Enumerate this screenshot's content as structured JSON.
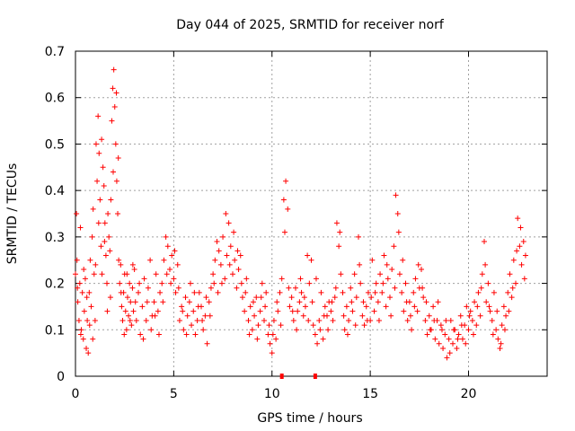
{
  "chart_data": {
    "type": "scatter",
    "title": "Day 044 of 2025, SRMTID for receiver norf",
    "xlabel": "GPS time / hours",
    "ylabel": "SRMTID / TECUs",
    "xlim": [
      0,
      24
    ],
    "ylim": [
      0,
      0.7
    ],
    "x_ticks": [
      0,
      5,
      10,
      15,
      20
    ],
    "x_tick_labels": [
      "0",
      "5",
      "10",
      "15",
      "20"
    ],
    "y_ticks": [
      0,
      0.1,
      0.2,
      0.3,
      0.4,
      0.5,
      0.6,
      0.7
    ],
    "y_tick_labels": [
      "0",
      "0.1",
      "0.2",
      "0.3",
      "0.4",
      "0.5",
      "0.6",
      "0.7"
    ],
    "grid": true,
    "color": "#ff0000",
    "marker": "plus",
    "points": [
      [
        0.0,
        0.22
      ],
      [
        0.05,
        0.35
      ],
      [
        0.08,
        0.25
      ],
      [
        0.12,
        0.16
      ],
      [
        0.18,
        0.12
      ],
      [
        0.22,
        0.2
      ],
      [
        0.25,
        0.32
      ],
      [
        0.3,
        0.1
      ],
      [
        0.35,
        0.18
      ],
      [
        0.4,
        0.08
      ],
      [
        0.45,
        0.14
      ],
      [
        0.5,
        0.21
      ],
      [
        0.55,
        0.06
      ],
      [
        0.6,
        0.12
      ],
      [
        0.65,
        0.05
      ],
      [
        0.7,
        0.18
      ],
      [
        0.75,
        0.25
      ],
      [
        0.8,
        0.15
      ],
      [
        0.85,
        0.3
      ],
      [
        0.9,
        0.36
      ],
      [
        0.95,
        0.22
      ],
      [
        1.0,
        0.12
      ],
      [
        1.05,
        0.5
      ],
      [
        1.1,
        0.42
      ],
      [
        1.15,
        0.56
      ],
      [
        1.2,
        0.48
      ],
      [
        1.25,
        0.38
      ],
      [
        1.3,
        0.28
      ],
      [
        1.35,
        0.22
      ],
      [
        1.4,
        0.45
      ],
      [
        1.45,
        0.41
      ],
      [
        1.5,
        0.33
      ],
      [
        1.55,
        0.26
      ],
      [
        1.6,
        0.2
      ],
      [
        1.65,
        0.35
      ],
      [
        1.7,
        0.3
      ],
      [
        1.75,
        0.27
      ],
      [
        1.8,
        0.38
      ],
      [
        1.85,
        0.55
      ],
      [
        1.9,
        0.62
      ],
      [
        1.95,
        0.66
      ],
      [
        2.0,
        0.58
      ],
      [
        2.05,
        0.5
      ],
      [
        2.1,
        0.42
      ],
      [
        2.15,
        0.35
      ],
      [
        2.2,
        0.25
      ],
      [
        2.25,
        0.2
      ],
      [
        2.3,
        0.24
      ],
      [
        2.35,
        0.15
      ],
      [
        2.4,
        0.12
      ],
      [
        2.45,
        0.18
      ],
      [
        2.5,
        0.22
      ],
      [
        2.55,
        0.14
      ],
      [
        2.6,
        0.1
      ],
      [
        2.65,
        0.17
      ],
      [
        2.7,
        0.13
      ],
      [
        2.75,
        0.2
      ],
      [
        2.8,
        0.16
      ],
      [
        2.85,
        0.11
      ],
      [
        2.9,
        0.19
      ],
      [
        2.95,
        0.14
      ],
      [
        3.0,
        0.23
      ],
      [
        3.1,
        0.12
      ],
      [
        3.2,
        0.18
      ],
      [
        3.3,
        0.09
      ],
      [
        3.4,
        0.15
      ],
      [
        3.5,
        0.21
      ],
      [
        3.6,
        0.12
      ],
      [
        3.7,
        0.19
      ],
      [
        3.8,
        0.25
      ],
      [
        3.9,
        0.13
      ],
      [
        4.0,
        0.16
      ],
      [
        4.1,
        0.22
      ],
      [
        4.2,
        0.14
      ],
      [
        4.3,
        0.18
      ],
      [
        4.4,
        0.2
      ],
      [
        4.5,
        0.25
      ],
      [
        4.6,
        0.3
      ],
      [
        4.7,
        0.28
      ],
      [
        4.8,
        0.23
      ],
      [
        4.9,
        0.26
      ],
      [
        5.0,
        0.21
      ],
      [
        5.1,
        0.18
      ],
      [
        5.2,
        0.24
      ],
      [
        5.3,
        0.12
      ],
      [
        5.4,
        0.15
      ],
      [
        5.5,
        0.1
      ],
      [
        5.6,
        0.17
      ],
      [
        5.7,
        0.13
      ],
      [
        5.8,
        0.16
      ],
      [
        5.9,
        0.11
      ],
      [
        6.0,
        0.14
      ],
      [
        6.1,
        0.09
      ],
      [
        6.2,
        0.12
      ],
      [
        6.3,
        0.18
      ],
      [
        6.4,
        0.15
      ],
      [
        6.5,
        0.1
      ],
      [
        6.6,
        0.13
      ],
      [
        6.7,
        0.07
      ],
      [
        6.8,
        0.16
      ],
      [
        6.9,
        0.19
      ],
      [
        7.0,
        0.22
      ],
      [
        7.1,
        0.25
      ],
      [
        7.2,
        0.29
      ],
      [
        7.3,
        0.27
      ],
      [
        7.4,
        0.24
      ],
      [
        7.5,
        0.3
      ],
      [
        7.6,
        0.21
      ],
      [
        7.7,
        0.26
      ],
      [
        7.8,
        0.33
      ],
      [
        7.9,
        0.28
      ],
      [
        8.0,
        0.22
      ],
      [
        8.1,
        0.25
      ],
      [
        8.2,
        0.19
      ],
      [
        8.3,
        0.23
      ],
      [
        8.4,
        0.26
      ],
      [
        8.5,
        0.17
      ],
      [
        8.6,
        0.14
      ],
      [
        8.7,
        0.21
      ],
      [
        8.8,
        0.12
      ],
      [
        8.9,
        0.15
      ],
      [
        9.0,
        0.1
      ],
      [
        9.1,
        0.13
      ],
      [
        9.2,
        0.17
      ],
      [
        9.3,
        0.11
      ],
      [
        9.4,
        0.14
      ],
      [
        9.5,
        0.2
      ],
      [
        9.6,
        0.12
      ],
      [
        9.7,
        0.18
      ],
      [
        9.8,
        0.09
      ],
      [
        9.9,
        0.07
      ],
      [
        10.0,
        0.05
      ],
      [
        10.1,
        0.12
      ],
      [
        10.2,
        0.08
      ],
      [
        10.3,
        0.14
      ],
      [
        10.4,
        0.18
      ],
      [
        10.5,
        0.21
      ],
      [
        10.6,
        0.38
      ],
      [
        10.7,
        0.42
      ],
      [
        10.8,
        0.36
      ],
      [
        10.9,
        0.15
      ],
      [
        11.0,
        0.17
      ],
      [
        11.1,
        0.12
      ],
      [
        11.2,
        0.19
      ],
      [
        11.3,
        0.14
      ],
      [
        11.4,
        0.16
      ],
      [
        11.5,
        0.18
      ],
      [
        11.6,
        0.13
      ],
      [
        11.7,
        0.15
      ],
      [
        11.8,
        0.26
      ],
      [
        11.9,
        0.2
      ],
      [
        12.0,
        0.25
      ],
      [
        12.1,
        0.11
      ],
      [
        12.2,
        0.09
      ],
      [
        12.3,
        0.07
      ],
      [
        12.4,
        0.12
      ],
      [
        12.5,
        0.18
      ],
      [
        12.6,
        0.08
      ],
      [
        12.7,
        0.15
      ],
      [
        12.8,
        0.13
      ],
      [
        12.9,
        0.16
      ],
      [
        13.0,
        0.14
      ],
      [
        13.1,
        0.12
      ],
      [
        13.2,
        0.17
      ],
      [
        13.3,
        0.33
      ],
      [
        13.4,
        0.28
      ],
      [
        13.5,
        0.22
      ],
      [
        13.6,
        0.18
      ],
      [
        13.7,
        0.1
      ],
      [
        13.8,
        0.15
      ],
      [
        13.9,
        0.12
      ],
      [
        14.0,
        0.19
      ],
      [
        14.1,
        0.14
      ],
      [
        14.2,
        0.22
      ],
      [
        14.3,
        0.17
      ],
      [
        14.4,
        0.3
      ],
      [
        14.5,
        0.2
      ],
      [
        14.6,
        0.13
      ],
      [
        14.7,
        0.11
      ],
      [
        14.8,
        0.15
      ],
      [
        14.9,
        0.18
      ],
      [
        15.0,
        0.12
      ],
      [
        15.1,
        0.25
      ],
      [
        15.2,
        0.14
      ],
      [
        15.3,
        0.2
      ],
      [
        15.4,
        0.16
      ],
      [
        15.5,
        0.22
      ],
      [
        15.6,
        0.18
      ],
      [
        15.7,
        0.26
      ],
      [
        15.8,
        0.15
      ],
      [
        15.9,
        0.21
      ],
      [
        16.0,
        0.17
      ],
      [
        16.1,
        0.23
      ],
      [
        16.2,
        0.28
      ],
      [
        16.3,
        0.39
      ],
      [
        16.4,
        0.35
      ],
      [
        16.5,
        0.22
      ],
      [
        16.6,
        0.18
      ],
      [
        16.7,
        0.14
      ],
      [
        16.8,
        0.2
      ],
      [
        16.9,
        0.12
      ],
      [
        17.0,
        0.16
      ],
      [
        17.1,
        0.1
      ],
      [
        17.2,
        0.18
      ],
      [
        17.3,
        0.21
      ],
      [
        17.4,
        0.14
      ],
      [
        17.5,
        0.19
      ],
      [
        17.6,
        0.23
      ],
      [
        17.7,
        0.17
      ],
      [
        17.8,
        0.12
      ],
      [
        17.9,
        0.09
      ],
      [
        18.0,
        0.13
      ],
      [
        18.1,
        0.1
      ],
      [
        18.2,
        0.15
      ],
      [
        18.3,
        0.08
      ],
      [
        18.4,
        0.12
      ],
      [
        18.5,
        0.07
      ],
      [
        18.6,
        0.11
      ],
      [
        18.7,
        0.06
      ],
      [
        18.8,
        0.09
      ],
      [
        18.9,
        0.04
      ],
      [
        19.0,
        0.08
      ],
      [
        19.1,
        0.12
      ],
      [
        19.2,
        0.07
      ],
      [
        19.3,
        0.1
      ],
      [
        19.4,
        0.06
      ],
      [
        19.5,
        0.09
      ],
      [
        19.6,
        0.13
      ],
      [
        19.7,
        0.08
      ],
      [
        19.8,
        0.11
      ],
      [
        19.9,
        0.15
      ],
      [
        20.0,
        0.1
      ],
      [
        20.1,
        0.14
      ],
      [
        20.2,
        0.12
      ],
      [
        20.3,
        0.16
      ],
      [
        20.4,
        0.11
      ],
      [
        20.5,
        0.18
      ],
      [
        20.6,
        0.13
      ],
      [
        20.7,
        0.22
      ],
      [
        20.8,
        0.29
      ],
      [
        20.9,
        0.16
      ],
      [
        21.0,
        0.2
      ],
      [
        21.1,
        0.14
      ],
      [
        21.2,
        0.12
      ],
      [
        21.3,
        0.18
      ],
      [
        21.4,
        0.1
      ],
      [
        21.5,
        0.08
      ],
      [
        21.6,
        0.06
      ],
      [
        21.7,
        0.11
      ],
      [
        21.8,
        0.15
      ],
      [
        21.9,
        0.13
      ],
      [
        22.0,
        0.18
      ],
      [
        22.1,
        0.22
      ],
      [
        22.2,
        0.17
      ],
      [
        22.3,
        0.25
      ],
      [
        22.4,
        0.2
      ],
      [
        22.5,
        0.34
      ],
      [
        22.6,
        0.28
      ],
      [
        22.7,
        0.24
      ],
      [
        22.8,
        0.29
      ],
      [
        22.9,
        0.26
      ],
      [
        0.1,
        0.19
      ],
      [
        0.27,
        0.09
      ],
      [
        0.42,
        0.23
      ],
      [
        0.58,
        0.17
      ],
      [
        0.72,
        0.11
      ],
      [
        0.88,
        0.08
      ],
      [
        1.02,
        0.24
      ],
      [
        1.18,
        0.33
      ],
      [
        1.33,
        0.51
      ],
      [
        1.48,
        0.29
      ],
      [
        1.62,
        0.14
      ],
      [
        1.78,
        0.17
      ],
      [
        1.92,
        0.44
      ],
      [
        2.08,
        0.61
      ],
      [
        2.18,
        0.47
      ],
      [
        2.32,
        0.18
      ],
      [
        2.48,
        0.09
      ],
      [
        2.62,
        0.22
      ],
      [
        2.78,
        0.12
      ],
      [
        2.92,
        0.24
      ],
      [
        3.05,
        0.16
      ],
      [
        3.25,
        0.2
      ],
      [
        3.45,
        0.08
      ],
      [
        3.65,
        0.16
      ],
      [
        3.85,
        0.1
      ],
      [
        4.05,
        0.13
      ],
      [
        4.25,
        0.09
      ],
      [
        4.45,
        0.16
      ],
      [
        4.65,
        0.22
      ],
      [
        4.85,
        0.2
      ],
      [
        5.05,
        0.27
      ],
      [
        5.25,
        0.19
      ],
      [
        5.45,
        0.14
      ],
      [
        5.65,
        0.09
      ],
      [
        5.85,
        0.2
      ],
      [
        6.05,
        0.18
      ],
      [
        6.25,
        0.15
      ],
      [
        6.45,
        0.12
      ],
      [
        6.65,
        0.17
      ],
      [
        6.85,
        0.13
      ],
      [
        7.05,
        0.2
      ],
      [
        7.25,
        0.18
      ],
      [
        7.45,
        0.2
      ],
      [
        7.65,
        0.35
      ],
      [
        7.85,
        0.24
      ],
      [
        8.05,
        0.31
      ],
      [
        8.25,
        0.27
      ],
      [
        8.45,
        0.2
      ],
      [
        8.65,
        0.18
      ],
      [
        8.85,
        0.09
      ],
      [
        9.05,
        0.16
      ],
      [
        9.25,
        0.08
      ],
      [
        9.45,
        0.17
      ],
      [
        9.65,
        0.15
      ],
      [
        9.85,
        0.11
      ],
      [
        10.05,
        0.09
      ],
      [
        10.25,
        0.16
      ],
      [
        10.45,
        0.11
      ],
      [
        10.65,
        0.31
      ],
      [
        10.85,
        0.19
      ],
      [
        11.05,
        0.14
      ],
      [
        11.25,
        0.1
      ],
      [
        11.45,
        0.21
      ],
      [
        11.65,
        0.17
      ],
      [
        11.85,
        0.12
      ],
      [
        12.05,
        0.16
      ],
      [
        12.25,
        0.21
      ],
      [
        12.45,
        0.1
      ],
      [
        12.65,
        0.13
      ],
      [
        12.85,
        0.1
      ],
      [
        13.05,
        0.16
      ],
      [
        13.25,
        0.19
      ],
      [
        13.45,
        0.31
      ],
      [
        13.65,
        0.13
      ],
      [
        13.85,
        0.09
      ],
      [
        14.05,
        0.16
      ],
      [
        14.25,
        0.11
      ],
      [
        14.45,
        0.24
      ],
      [
        14.65,
        0.16
      ],
      [
        14.85,
        0.12
      ],
      [
        15.05,
        0.17
      ],
      [
        15.25,
        0.18
      ],
      [
        15.45,
        0.12
      ],
      [
        15.65,
        0.2
      ],
      [
        15.85,
        0.24
      ],
      [
        16.05,
        0.13
      ],
      [
        16.25,
        0.19
      ],
      [
        16.45,
        0.31
      ],
      [
        16.65,
        0.25
      ],
      [
        16.85,
        0.16
      ],
      [
        17.05,
        0.13
      ],
      [
        17.25,
        0.15
      ],
      [
        17.45,
        0.24
      ],
      [
        17.65,
        0.19
      ],
      [
        17.85,
        0.16
      ],
      [
        18.05,
        0.1
      ],
      [
        18.25,
        0.12
      ],
      [
        18.45,
        0.16
      ],
      [
        18.65,
        0.1
      ],
      [
        18.85,
        0.12
      ],
      [
        19.05,
        0.05
      ],
      [
        19.25,
        0.1
      ],
      [
        19.45,
        0.08
      ],
      [
        19.65,
        0.11
      ],
      [
        19.85,
        0.07
      ],
      [
        20.05,
        0.13
      ],
      [
        20.25,
        0.09
      ],
      [
        20.45,
        0.15
      ],
      [
        20.65,
        0.19
      ],
      [
        20.85,
        0.24
      ],
      [
        21.05,
        0.15
      ],
      [
        21.25,
        0.09
      ],
      [
        21.45,
        0.14
      ],
      [
        21.65,
        0.07
      ],
      [
        21.85,
        0.1
      ],
      [
        22.05,
        0.14
      ],
      [
        22.25,
        0.19
      ],
      [
        22.45,
        0.27
      ],
      [
        22.65,
        0.32
      ],
      [
        22.85,
        0.21
      ]
    ],
    "markers": [
      [
        10.5,
        0
      ],
      [
        12.2,
        0
      ]
    ]
  }
}
